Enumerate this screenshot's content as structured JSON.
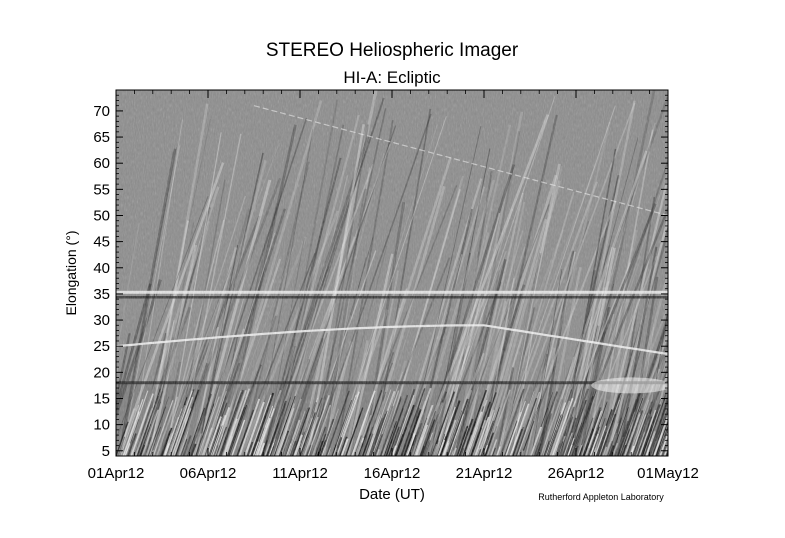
{
  "chart_data": {
    "type": "heatmap",
    "title": "STEREO Heliospheric Imager",
    "subtitle": "HI-A: Ecliptic",
    "xlabel": "Date (UT)",
    "ylabel": "Elongation (°)",
    "x_ticks": [
      "01Apr12",
      "06Apr12",
      "11Apr12",
      "16Apr12",
      "21Apr12",
      "26Apr12",
      "01May12"
    ],
    "x_range_days": [
      0,
      30
    ],
    "ylim": [
      4,
      74
    ],
    "y_ticks": [
      5,
      10,
      15,
      20,
      25,
      30,
      35,
      40,
      45,
      50,
      55,
      60,
      65,
      70
    ],
    "colormap": "grayscale",
    "credit": "Rutherford Appleton Laboratory"
  }
}
